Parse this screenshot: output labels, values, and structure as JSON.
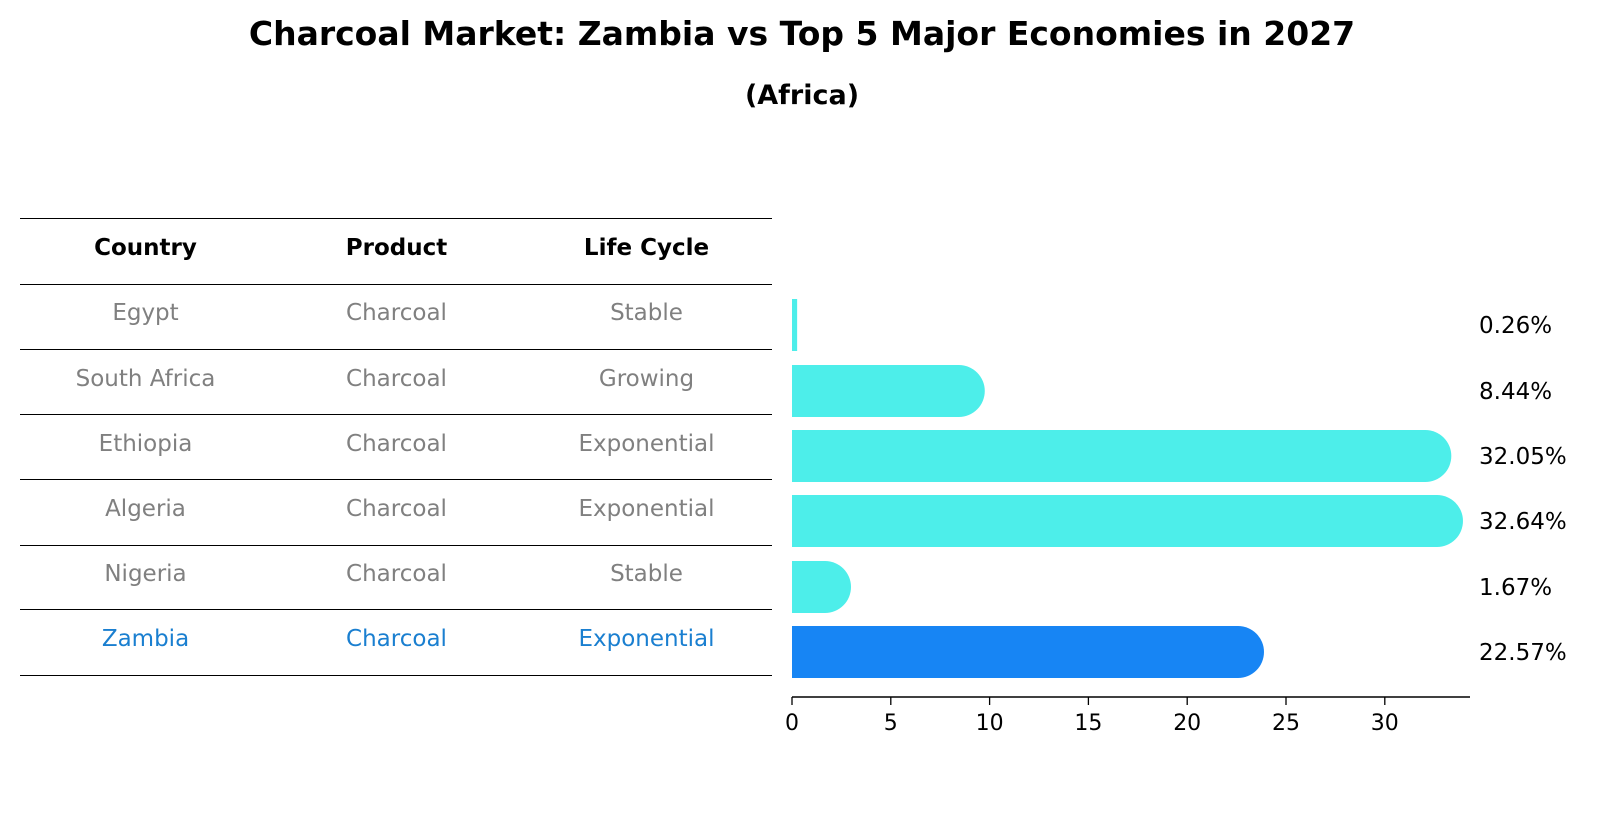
{
  "header": {
    "title": "Charcoal Market: Zambia vs Top 5 Major Economies in 2027",
    "subtitle": "(Africa)"
  },
  "table": {
    "columns": [
      "Country",
      "Product",
      "Life Cycle"
    ],
    "rows": [
      {
        "country": "Egypt",
        "product": "Charcoal",
        "life_cycle": "Stable"
      },
      {
        "country": "South Africa",
        "product": "Charcoal",
        "life_cycle": "Growing"
      },
      {
        "country": "Ethiopia",
        "product": "Charcoal",
        "life_cycle": "Exponential"
      },
      {
        "country": "Algeria",
        "product": "Charcoal",
        "life_cycle": "Exponential"
      },
      {
        "country": "Nigeria",
        "product": "Charcoal",
        "life_cycle": "Stable"
      },
      {
        "country": "Zambia",
        "product": "Charcoal",
        "life_cycle": "Exponential"
      }
    ],
    "highlight_row": "Zambia"
  },
  "chart_data": {
    "type": "bar",
    "orientation": "horizontal",
    "categories": [
      "Egypt",
      "South Africa",
      "Ethiopia",
      "Algeria",
      "Nigeria",
      "Zambia"
    ],
    "values": [
      0.26,
      8.44,
      32.05,
      32.64,
      1.67,
      22.57
    ],
    "value_labels": [
      "0.26%",
      "8.44%",
      "32.05%",
      "32.64%",
      "1.67%",
      "22.57%"
    ],
    "highlight": "Zambia",
    "xticks": [
      0,
      5,
      10,
      15,
      20,
      25,
      30
    ],
    "xlim": [
      0,
      34.3
    ],
    "grid": false,
    "colors": {
      "bar": "#4deeea",
      "highlight": "#1785f4"
    }
  }
}
